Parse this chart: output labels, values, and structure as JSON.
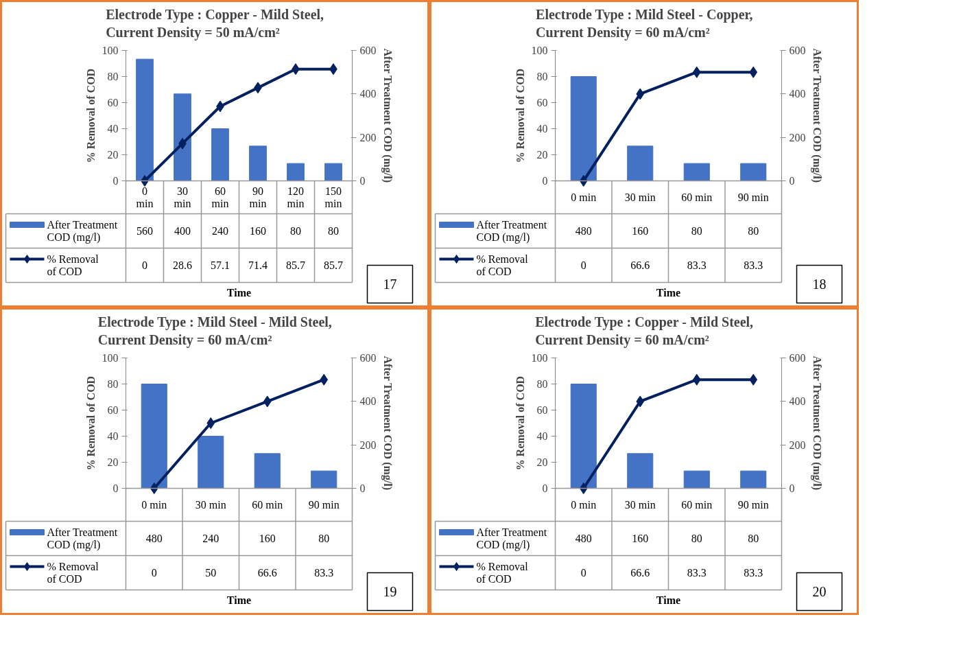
{
  "chart_data": [
    {
      "type": "bar",
      "title": "Electrode Type : Copper - Mild Steel,\nCurrent Density = 50 mA/cm²",
      "categories": [
        "0 min",
        "30 min",
        "60 min",
        "90 min",
        "120 min",
        "150 min"
      ],
      "series": [
        {
          "name": "After Treatment COD (mg/l)",
          "color": "#4472c4",
          "axis": "y2",
          "values": [
            560,
            400,
            240,
            160,
            80,
            80
          ]
        },
        {
          "name": "% Removal of COD",
          "color": "#002060",
          "type": "line",
          "values": [
            0,
            28.6,
            57.1,
            71.4,
            85.7,
            85.7
          ]
        }
      ],
      "ylim": [
        0,
        100
      ],
      "yticks": [
        0,
        20,
        40,
        60,
        80,
        100
      ],
      "y2lim": [
        0,
        600
      ],
      "y2ticks": [
        0,
        200,
        400,
        600
      ],
      "ylabel": "% Removal of COD",
      "y2label": "After Treatment COD (mg/l)",
      "xlabel": "Time",
      "marker": "diamond",
      "legend": "bottom",
      "data_labels": true,
      "annotations": [
        "17"
      ]
    },
    {
      "type": "bar",
      "title": "Electrode Type : Mild Steel - Copper,\nCurrent Density = 60 mA/cm²",
      "categories": [
        "0 min",
        "30 min",
        "60 min",
        "90 min"
      ],
      "series": [
        {
          "name": "After Treatment COD (mg/l)",
          "color": "#4472c4",
          "axis": "y2",
          "values": [
            480,
            160,
            80,
            80
          ]
        },
        {
          "name": "% Removal of COD",
          "color": "#002060",
          "type": "line",
          "values": [
            0,
            66.6,
            83.3,
            83.3
          ]
        }
      ],
      "ylim": [
        0,
        100
      ],
      "yticks": [
        0,
        20,
        40,
        60,
        80,
        100
      ],
      "y2lim": [
        0,
        600
      ],
      "y2ticks": [
        0,
        200,
        400,
        600
      ],
      "ylabel": "% Removal of COD",
      "y2label": "After Treatment COD (mg/l)",
      "xlabel": "Time",
      "marker": "diamond",
      "legend": "bottom",
      "data_labels": true,
      "annotations": [
        "18"
      ]
    },
    {
      "type": "bar",
      "title": "Electrode Type : Mild Steel - Mild Steel,\nCurrent Density = 60 mA/cm²",
      "categories": [
        "0 min",
        "30 min",
        "60 min",
        "90 min"
      ],
      "series": [
        {
          "name": "After Treatment COD (mg/l)",
          "color": "#4472c4",
          "axis": "y2",
          "values": [
            480,
            240,
            160,
            80
          ]
        },
        {
          "name": "% Removal of COD",
          "color": "#002060",
          "type": "line",
          "values": [
            0,
            50,
            66.6,
            83.3
          ]
        }
      ],
      "ylim": [
        0,
        100
      ],
      "yticks": [
        0,
        20,
        40,
        60,
        80,
        100
      ],
      "y2lim": [
        0,
        600
      ],
      "y2ticks": [
        0,
        200,
        400,
        600
      ],
      "ylabel": "% Removal of COD",
      "y2label": "After Treatment COD (mg/l)",
      "xlabel": "Time",
      "marker": "diamond",
      "legend": "bottom",
      "data_labels": true,
      "annotations": [
        "19"
      ]
    },
    {
      "type": "bar",
      "title": "Electrode Type : Copper - Mild Steel,\nCurrent Density = 60 mA/cm²",
      "categories": [
        "0 min",
        "30 min",
        "60 min",
        "90 min"
      ],
      "series": [
        {
          "name": "After Treatment COD (mg/l)",
          "color": "#4472c4",
          "axis": "y2",
          "values": [
            480,
            160,
            80,
            80
          ]
        },
        {
          "name": "% Removal of COD",
          "color": "#002060",
          "type": "line",
          "values": [
            0,
            66.6,
            83.3,
            83.3
          ]
        }
      ],
      "ylim": [
        0,
        100
      ],
      "yticks": [
        0,
        20,
        40,
        60,
        80,
        100
      ],
      "y2lim": [
        0,
        600
      ],
      "y2ticks": [
        0,
        200,
        400,
        600
      ],
      "ylabel": "% Removal of COD",
      "y2label": "After Treatment COD (mg/l)",
      "xlabel": "Time",
      "marker": "diamond",
      "legend": "bottom",
      "data_labels": true,
      "annotations": [
        "20"
      ]
    }
  ]
}
